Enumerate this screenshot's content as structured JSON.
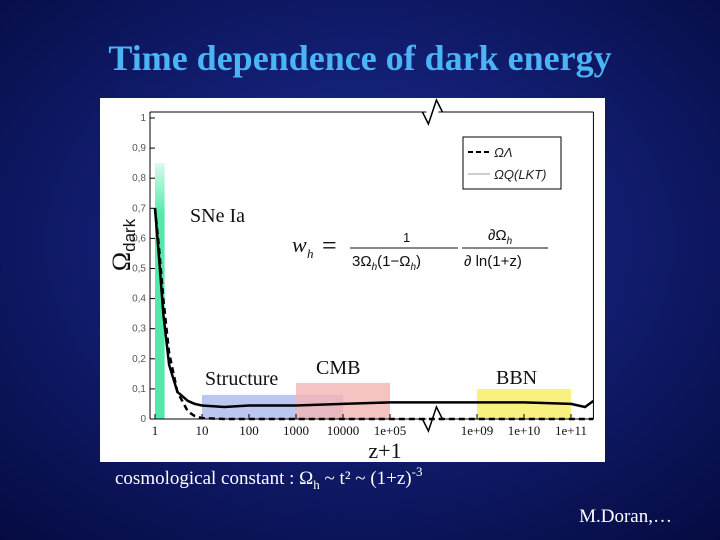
{
  "title": "Time dependence of dark energy",
  "caption": {
    "text": "cosmological constant : Ω",
    "sub": "h",
    "middle": " ~ t² ~ (1+z)",
    "sup": "-3"
  },
  "credit": "M.Doran,…",
  "chart_data": {
    "type": "line",
    "x_label": "z+1",
    "y_label": {
      "symbol": "Ω",
      "sub": "dark"
    },
    "x_scale": "log",
    "x_break": [
      300000,
      300000000
    ],
    "xlim": [
      1,
      300000000000
    ],
    "xticks": [
      1,
      10,
      100,
      1000,
      10000,
      {
        "value": 100000,
        "label": "1e+05"
      },
      {
        "value": 1000000000,
        "label": "1e+09"
      },
      {
        "value": 10000000000,
        "label": "1e+10"
      },
      {
        "value": 100000000000,
        "label": "1e+11"
      }
    ],
    "ylim": [
      0,
      1
    ],
    "yticks": [
      0,
      {
        "value": 0.1,
        "label": "0,1"
      },
      {
        "value": 0.2,
        "label": "0,2"
      },
      {
        "value": 0.3,
        "label": "0,3"
      },
      {
        "value": 0.4,
        "label": "0,4"
      },
      {
        "value": 0.5,
        "label": "0,5"
      },
      {
        "value": 0.6,
        "label": "0,6"
      },
      {
        "value": 0.7,
        "label": "0,7"
      },
      {
        "value": 0.8,
        "label": "0,8"
      },
      {
        "value": 0.9,
        "label": "0,9"
      },
      1
    ],
    "legend": "upper right",
    "x": [
      1,
      1.2,
      1.5,
      2,
      3,
      5,
      7,
      10,
      30,
      100,
      1000,
      10000,
      100000,
      1000000000,
      10000000000,
      100000000000,
      200000000000,
      300000000000
    ],
    "series": [
      {
        "name": "ΩΛ",
        "color": "#000000",
        "dash": true,
        "values": [
          0.7,
          0.58,
          0.4,
          0.22,
          0.09,
          0.025,
          0.01,
          0.003,
          0,
          0,
          0,
          0,
          0,
          0,
          0,
          0,
          0,
          0
        ]
      },
      {
        "name": "ΩQ(LKT)",
        "color": "#000000",
        "dash": false,
        "values": [
          0.7,
          0.55,
          0.35,
          0.18,
          0.09,
          0.06,
          0.05,
          0.045,
          0.04,
          0.045,
          0.045,
          0.05,
          0.055,
          0.055,
          0.055,
          0.05,
          0.04,
          0.06
        ]
      }
    ],
    "regions": [
      {
        "label": "SNe Ia",
        "x": [
          1,
          1.6
        ],
        "y": [
          0,
          0.85
        ],
        "color": "#3ee8a0"
      },
      {
        "label": "Structure",
        "x": [
          10,
          10000
        ],
        "y": [
          0,
          0.08
        ],
        "color": "#aab8ee"
      },
      {
        "label": "CMB",
        "x": [
          1000,
          100000
        ],
        "y": [
          0,
          0.12
        ],
        "color": "#f4b4b4"
      },
      {
        "label": "BBN",
        "x": [
          1000000000,
          100000000000
        ],
        "y": [
          0,
          0.1
        ],
        "color": "#f6ee60"
      }
    ],
    "formula": [
      "w",
      "h",
      "=",
      "1",
      "3Ω",
      "h",
      "(1−Ω",
      "h",
      ")",
      "∂Ω",
      "h",
      "∂ ln(1+z)"
    ]
  }
}
